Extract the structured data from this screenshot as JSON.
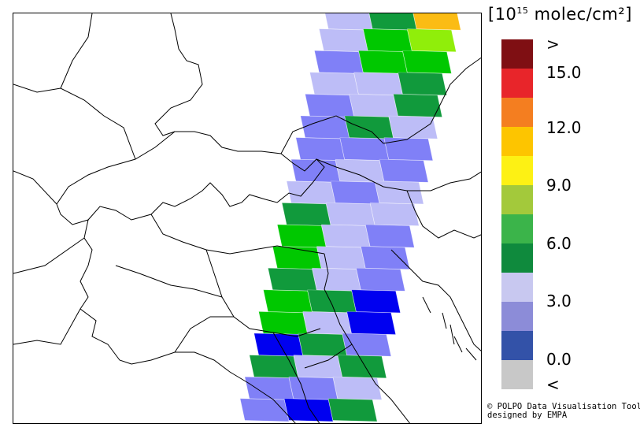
{
  "unit": {
    "prefix": "[10",
    "exponent": "15",
    "suffix": " molec/cm²]"
  },
  "legend": {
    "colors": [
      "#7f0f13",
      "#e8252a",
      "#f47e20",
      "#fdc500",
      "#fdf114",
      "#a3c93b",
      "#3bb44a",
      "#0f8a3d",
      "#c8c8f0",
      "#8c8cd8",
      "#3352a8",
      "#c8c8c8"
    ],
    "labels": [
      ">",
      "15.0",
      "12.0",
      "9.0",
      "6.0",
      "3.0",
      "0.0",
      "<"
    ]
  },
  "credit": {
    "line1": "© POLPO Data Visualisation Tool",
    "line2": "designed by EMPA"
  },
  "pixels": [
    [
      "lav",
      "dg",
      "or"
    ],
    [
      "lav",
      "gr",
      "lg"
    ],
    [
      "blu",
      "gr",
      "gr"
    ],
    [
      "lav",
      "lav",
      "dg"
    ],
    [
      "blu",
      "lav",
      "dg"
    ],
    [
      "blu",
      "dg",
      "lav"
    ],
    [
      "blu",
      "blu",
      "blu"
    ],
    [
      "blu",
      "lav",
      "blu"
    ],
    [
      "lav",
      "blu",
      "lav"
    ],
    [
      "dg",
      "lav",
      "lav"
    ],
    [
      "gr",
      "lav",
      "blu"
    ],
    [
      "gr",
      "lav",
      "blu"
    ],
    [
      "dg",
      "lav",
      "blu"
    ],
    [
      "gr",
      "dg",
      "db"
    ],
    [
      "gr",
      "lav",
      "db"
    ],
    [
      "db",
      "dg",
      "blu"
    ],
    [
      "dg",
      "lav",
      "dg"
    ],
    [
      "blu",
      "blu",
      "lav"
    ],
    [
      "blu",
      "db",
      "dg"
    ]
  ],
  "pixel_colors": {
    "lav": "#bdbdf7",
    "blu": "#8080f7",
    "db": "#0000f0",
    "dg": "#119a3c",
    "gr": "#00c800",
    "lg": "#90ee0a",
    "or": "#fbbc14"
  }
}
